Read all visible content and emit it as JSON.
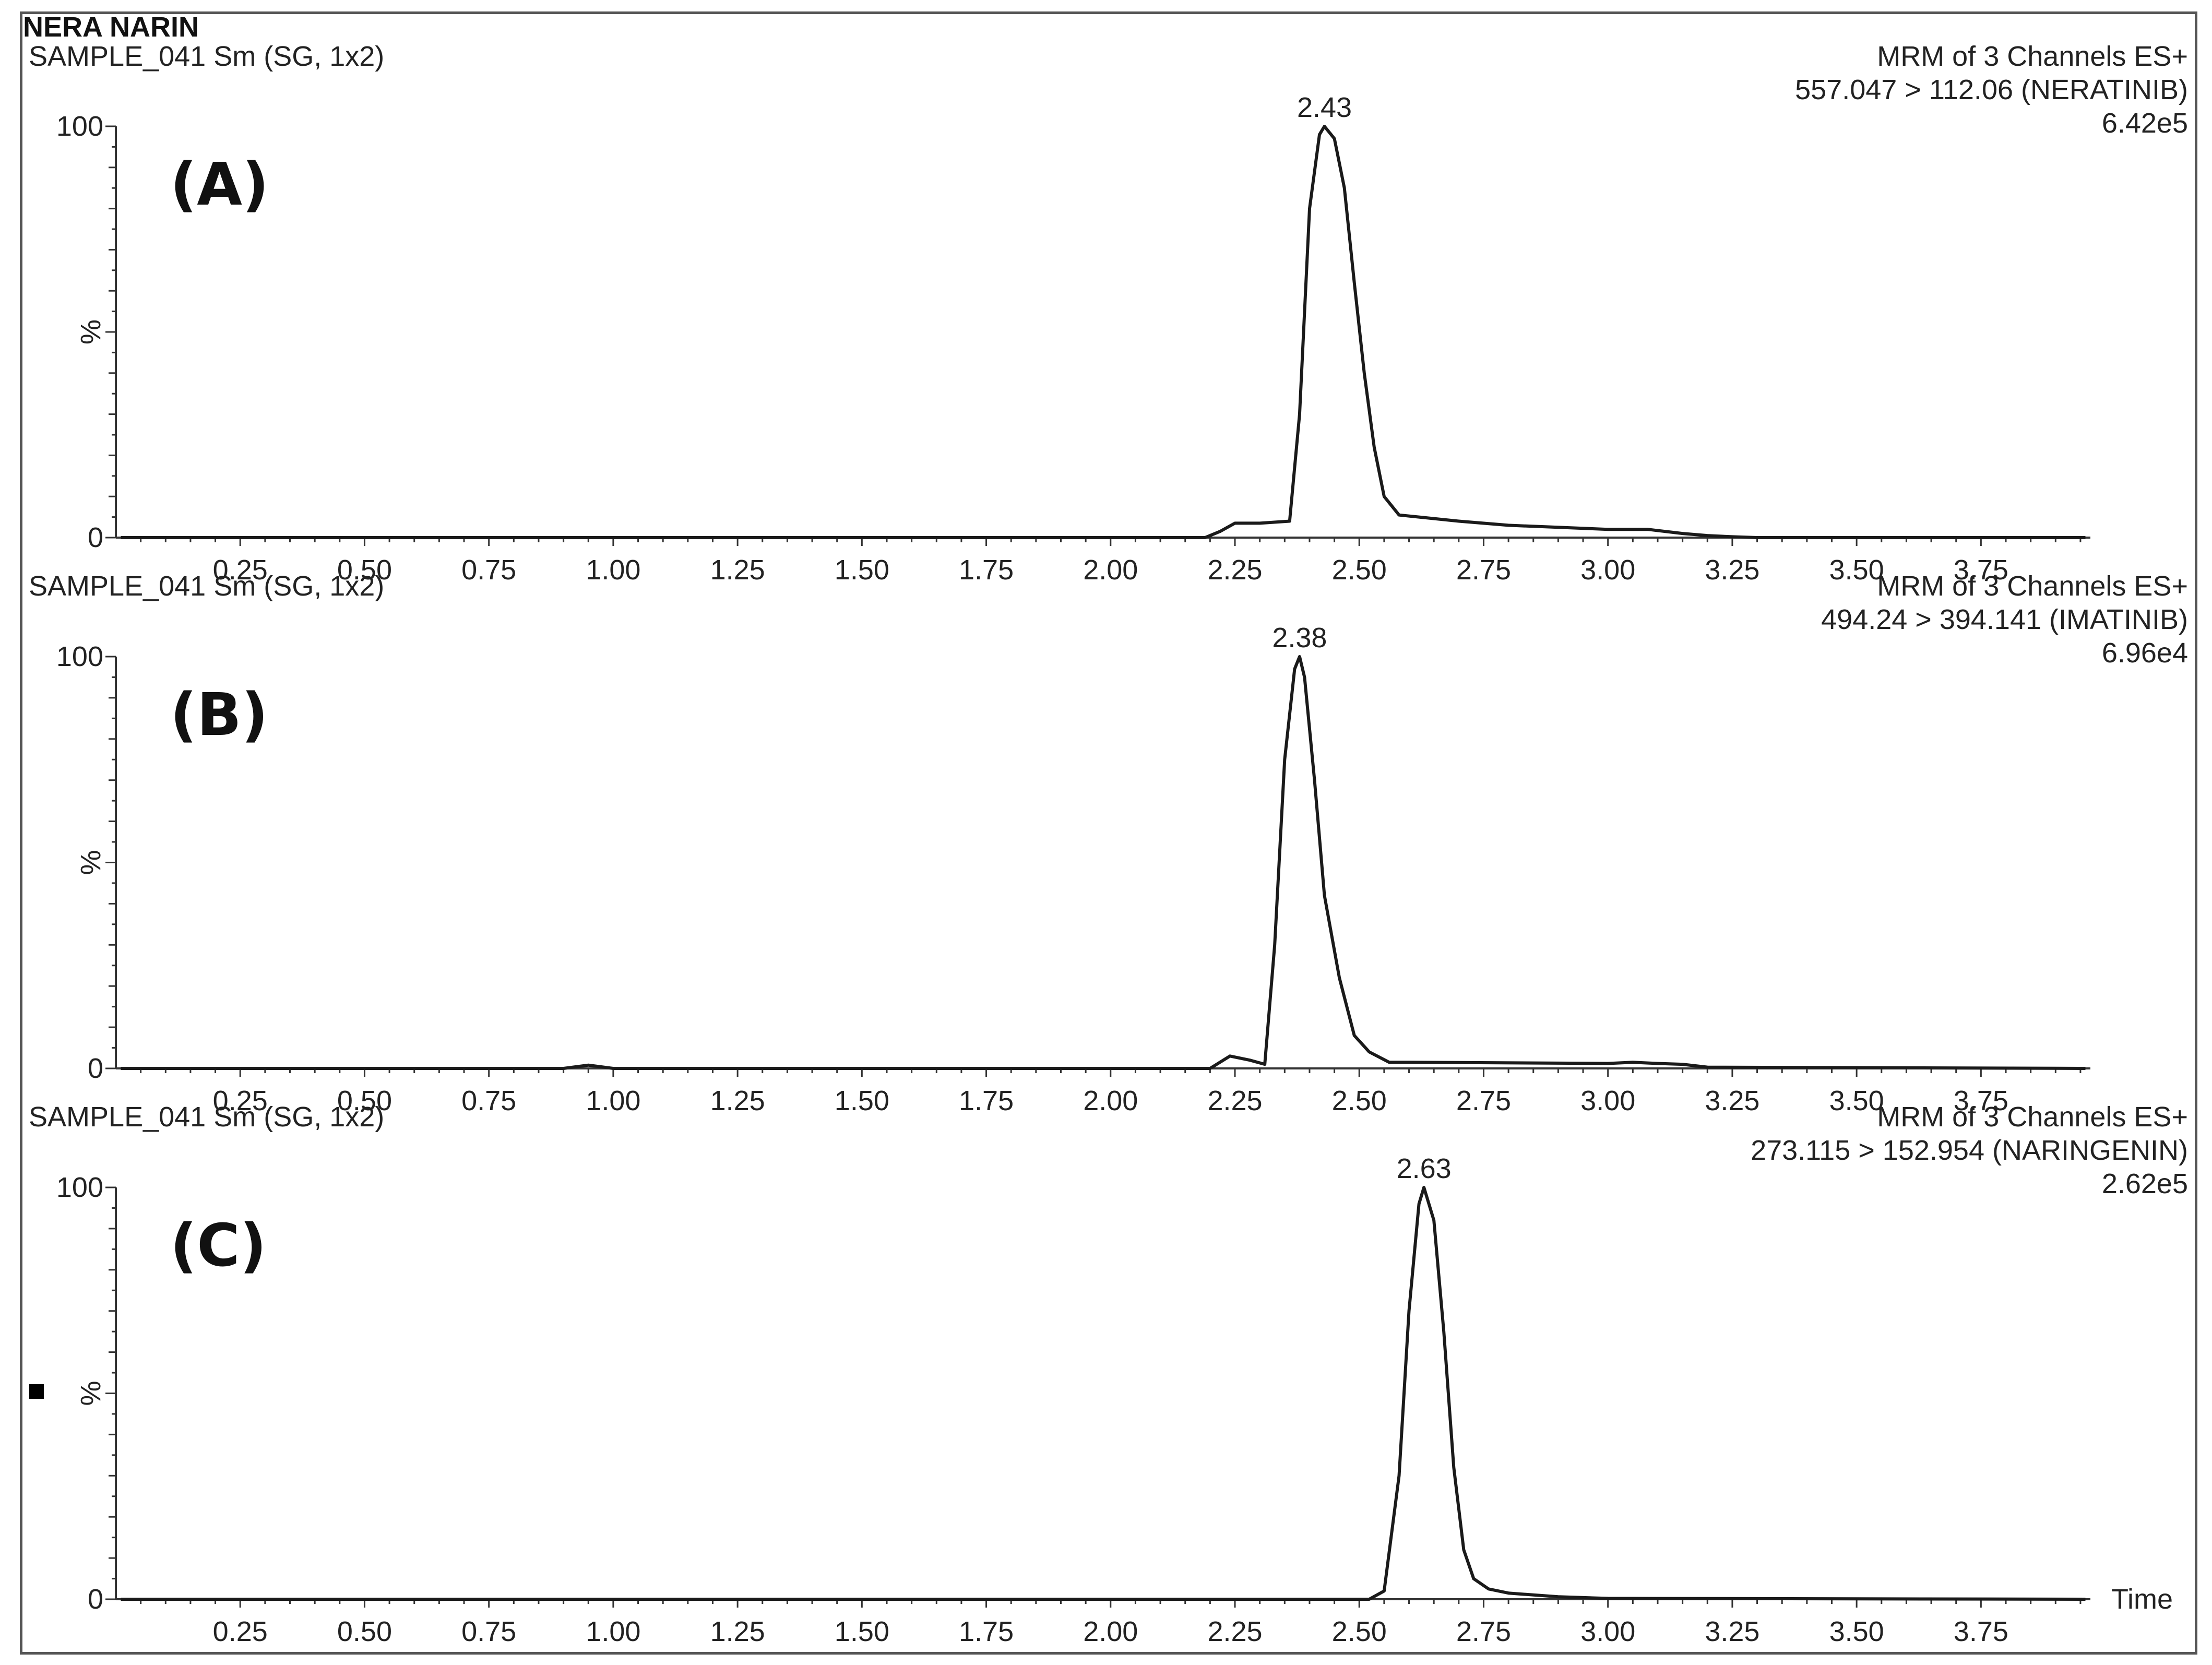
{
  "title": "NERA NARIN",
  "chart_data": [
    {
      "type": "line",
      "panel_letter": "(A)",
      "sample_label": "SAMPLE_041 Sm (SG, 1x2)",
      "header_right": [
        "MRM of 3 Channels ES+",
        "557.047 > 112.06 (NERATINIB)",
        "6.42e5"
      ],
      "peak_label": "2.43",
      "ylabel": "%",
      "y_ticks": [
        "100",
        "0"
      ],
      "ylim": [
        0,
        100
      ],
      "xlim": [
        0,
        3.97
      ],
      "x_ticks": [
        "0.25",
        "0.50",
        "0.75",
        "1.00",
        "1.25",
        "1.50",
        "1.75",
        "2.00",
        "2.25",
        "2.50",
        "2.75",
        "3.00",
        "3.25",
        "3.50",
        "3.75"
      ],
      "series": [
        {
          "x": [
            0.01,
            2.19,
            2.22,
            2.25,
            2.3,
            2.36,
            2.38,
            2.4,
            2.42,
            2.43,
            2.45,
            2.47,
            2.49,
            2.51,
            2.53,
            2.55,
            2.58,
            2.62,
            2.7,
            2.8,
            3.0,
            3.08,
            3.15,
            3.2,
            3.25,
            3.3,
            3.96
          ],
          "y": [
            0,
            0,
            1.5,
            3.5,
            3.5,
            4,
            30,
            80,
            98,
            100,
            97,
            85,
            62,
            40,
            22,
            10,
            5.5,
            5,
            4,
            3,
            2,
            2,
            1,
            0.5,
            0.2,
            0,
            0
          ]
        }
      ]
    },
    {
      "type": "line",
      "panel_letter": "(B)",
      "sample_label": "SAMPLE_041 Sm (SG, 1x2)",
      "header_right": [
        "MRM of 3 Channels ES+",
        "494.24 > 394.141 (IMATINIB)",
        "6.96e4"
      ],
      "peak_label": "2.38",
      "ylabel": "%",
      "y_ticks": [
        "100",
        "0"
      ],
      "ylim": [
        0,
        100
      ],
      "xlim": [
        0,
        3.97
      ],
      "x_ticks": [
        "0.25",
        "0.50",
        "0.75",
        "1.00",
        "1.25",
        "1.50",
        "1.75",
        "2.00",
        "2.25",
        "2.50",
        "2.75",
        "3.00",
        "3.25",
        "3.50",
        "3.75"
      ],
      "series": [
        {
          "x": [
            0.01,
            0.9,
            0.95,
            1.0,
            2.2,
            2.24,
            2.28,
            2.31,
            2.33,
            2.35,
            2.37,
            2.38,
            2.39,
            2.41,
            2.43,
            2.46,
            2.49,
            2.52,
            2.56,
            2.6,
            3.0,
            3.05,
            3.1,
            3.15,
            3.2,
            3.96
          ],
          "y": [
            0,
            0,
            0.8,
            0,
            0,
            3,
            2,
            1,
            30,
            75,
            97,
            100,
            95,
            70,
            42,
            22,
            8,
            4,
            1.5,
            1.5,
            1.2,
            1.5,
            1.2,
            1.0,
            0.3,
            0
          ]
        }
      ]
    },
    {
      "type": "line",
      "panel_letter": "(C)",
      "sample_label": "SAMPLE_041 Sm (SG, 1x2)",
      "header_right": [
        "MRM of 3 Channels ES+",
        "273.115 > 152.954 (NARINGENIN)",
        "2.62e5"
      ],
      "peak_label": "2.63",
      "ylabel": "%",
      "y_ticks": [
        "100",
        "0"
      ],
      "ylim": [
        0,
        100
      ],
      "xlim": [
        0,
        3.97
      ],
      "xlabel": "Time",
      "x_ticks": [
        "0.25",
        "0.50",
        "0.75",
        "1.00",
        "1.25",
        "1.50",
        "1.75",
        "2.00",
        "2.25",
        "2.50",
        "2.75",
        "3.00",
        "3.25",
        "3.50",
        "3.75"
      ],
      "series": [
        {
          "x": [
            0.01,
            2.52,
            2.55,
            2.58,
            2.6,
            2.62,
            2.63,
            2.65,
            2.67,
            2.69,
            2.71,
            2.73,
            2.76,
            2.8,
            2.9,
            3.0,
            3.96
          ],
          "y": [
            0,
            0,
            2,
            30,
            70,
            96,
            100,
            92,
            65,
            32,
            12,
            5,
            2.5,
            1.5,
            0.6,
            0.2,
            0
          ]
        }
      ]
    }
  ]
}
